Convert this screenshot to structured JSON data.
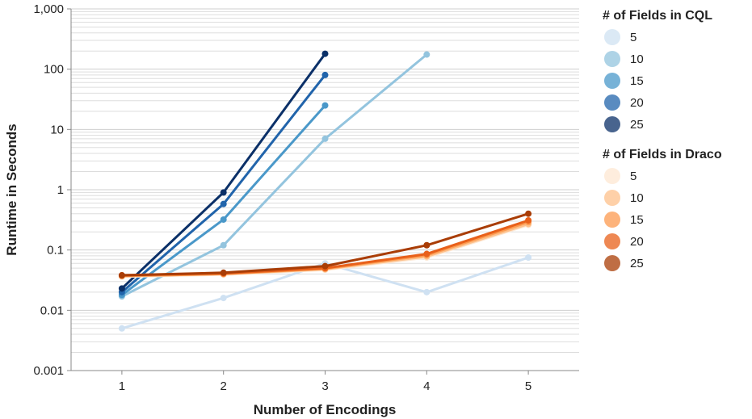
{
  "chart_data": {
    "type": "line",
    "xlabel": "Number of Encodings",
    "ylabel": "Runtime in Seconds",
    "x_ticks": [
      "1",
      "2",
      "3",
      "4",
      "5"
    ],
    "y_ticks": [
      "0.001",
      "0.01",
      "0.1",
      "1",
      "10",
      "100",
      "1,000"
    ],
    "y_scale": "log",
    "ylim": [
      0.001,
      1000
    ],
    "xlim": [
      0.5,
      5.5
    ],
    "grid": true,
    "legend_position": "right",
    "legends": [
      {
        "title": "# of Fields in CQL",
        "entries": [
          "5",
          "10",
          "15",
          "20",
          "25"
        ],
        "colors": [
          "#cfe1f2",
          "#93c4de",
          "#4a98c9",
          "#2164ab",
          "#0b3068"
        ]
      },
      {
        "title": "# of Fields in Draco",
        "entries": [
          "5",
          "10",
          "15",
          "20",
          "25"
        ],
        "colors": [
          "#fde7d2",
          "#fdc08b",
          "#fc9a4f",
          "#e8601a",
          "#a93d06"
        ]
      }
    ],
    "series": [
      {
        "group": "CQL",
        "name": "5",
        "color": "#cfe1f2",
        "x": [
          1,
          2,
          3,
          4,
          5
        ],
        "y": [
          0.005,
          0.016,
          0.06,
          0.02,
          0.075
        ]
      },
      {
        "group": "CQL",
        "name": "10",
        "color": "#93c4de",
        "x": [
          1,
          2,
          3,
          4
        ],
        "y": [
          0.017,
          0.12,
          7,
          175
        ]
      },
      {
        "group": "CQL",
        "name": "15",
        "color": "#4a98c9",
        "x": [
          1,
          2,
          3
        ],
        "y": [
          0.018,
          0.32,
          25
        ]
      },
      {
        "group": "CQL",
        "name": "20",
        "color": "#2164ab",
        "x": [
          1,
          2,
          3
        ],
        "y": [
          0.02,
          0.58,
          80
        ]
      },
      {
        "group": "CQL",
        "name": "25",
        "color": "#0b3068",
        "x": [
          1,
          2,
          3
        ],
        "y": [
          0.023,
          0.9,
          180
        ]
      },
      {
        "group": "Draco",
        "name": "5",
        "color": "#fde7d2",
        "x": [
          1,
          2,
          3,
          4,
          5
        ],
        "y": [
          0.036,
          0.039,
          0.047,
          0.075,
          0.26
        ]
      },
      {
        "group": "Draco",
        "name": "10",
        "color": "#fdc08b",
        "x": [
          1,
          2,
          3,
          4,
          5
        ],
        "y": [
          0.037,
          0.04,
          0.048,
          0.078,
          0.27
        ]
      },
      {
        "group": "Draco",
        "name": "15",
        "color": "#fc9a4f",
        "x": [
          1,
          2,
          3,
          4,
          5
        ],
        "y": [
          0.037,
          0.04,
          0.049,
          0.082,
          0.29
        ]
      },
      {
        "group": "Draco",
        "name": "20",
        "color": "#e8601a",
        "x": [
          1,
          2,
          3,
          4,
          5
        ],
        "y": [
          0.038,
          0.041,
          0.05,
          0.086,
          0.31
        ]
      },
      {
        "group": "Draco",
        "name": "25",
        "color": "#a93d06",
        "x": [
          1,
          2,
          3,
          4,
          5
        ],
        "y": [
          0.038,
          0.042,
          0.054,
          0.12,
          0.4
        ]
      }
    ]
  }
}
